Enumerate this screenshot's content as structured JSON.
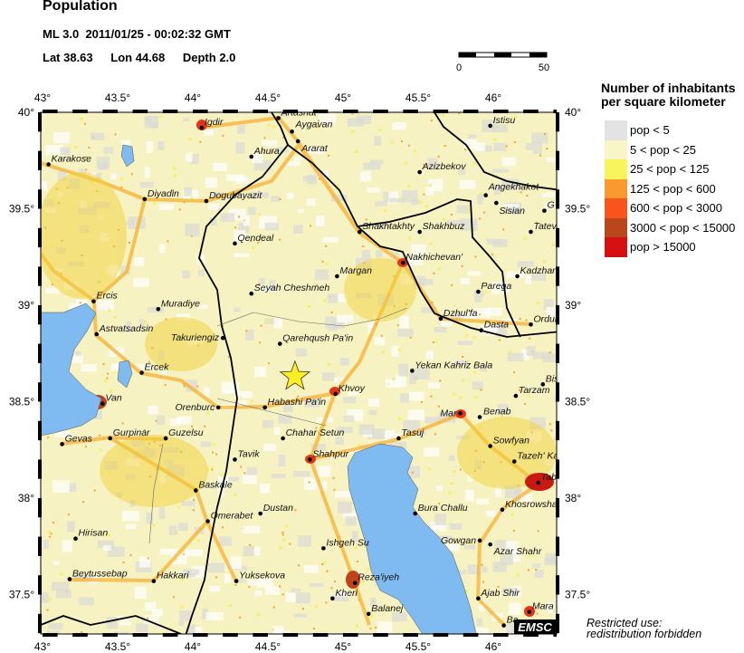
{
  "header": {
    "title": "Population",
    "magnitude": "ML 3.0",
    "datetime": "2011/01/25 - 00:02:32 GMT",
    "lat": "Lat 38.63",
    "lon": "Lon 44.68",
    "depth": "Depth  2.0"
  },
  "scale_bar": {
    "start_label": "0",
    "end_label": "50"
  },
  "map": {
    "lon_range": [
      43,
      46.42
    ],
    "lat_range": [
      37.3,
      40
    ],
    "lon_ticks": [
      "43°",
      "43.5°",
      "44°",
      "44.5°",
      "45°",
      "45.5°",
      "46°"
    ],
    "lat_ticks": [
      "40°",
      "39.5°",
      "39°",
      "38.5°",
      "38°",
      "37.5°"
    ],
    "lon_tick_values": [
      43,
      43.5,
      44,
      44.5,
      45,
      45.5,
      46
    ],
    "lat_tick_values": [
      40,
      39.5,
      39,
      38.5,
      38,
      37.5
    ],
    "epicenter": {
      "lat": 38.63,
      "lon": 44.68,
      "color": "#ffee22"
    },
    "water_color": "#7fbaf0",
    "cities": [
      {
        "name": "Artashat",
        "lat": 39.97,
        "lon": 44.57
      },
      {
        "name": "Aygavan",
        "lat": 39.9,
        "lon": 44.66
      },
      {
        "name": "Ararat",
        "lat": 39.85,
        "lon": 44.7
      },
      {
        "name": "Igdir",
        "lat": 39.92,
        "lon": 44.06
      },
      {
        "name": "Ahura",
        "lat": 39.77,
        "lon": 44.39
      },
      {
        "name": "Karakose",
        "lat": 39.73,
        "lon": 43.04
      },
      {
        "name": "Diyadin",
        "lat": 39.55,
        "lon": 43.68
      },
      {
        "name": "Dogubayazit",
        "lat": 39.54,
        "lon": 44.09
      },
      {
        "name": "Azizbekov",
        "lat": 39.69,
        "lon": 45.51
      },
      {
        "name": "Istisu",
        "lat": 39.93,
        "lon": 45.98
      },
      {
        "name": "Angekhakot",
        "lat": 39.57,
        "lon": 45.95
      },
      {
        "name": "Sisian",
        "lat": 39.53,
        "lon": 46.02
      },
      {
        "name": "G",
        "lat": 39.49,
        "lon": 46.34
      },
      {
        "name": "Tatev",
        "lat": 39.38,
        "lon": 46.25
      },
      {
        "name": "Shakhtakhty",
        "lat": 39.38,
        "lon": 45.11
      },
      {
        "name": "Shakhbuz",
        "lat": 39.38,
        "lon": 45.51
      },
      {
        "name": "Qendeal",
        "lat": 39.32,
        "lon": 44.28
      },
      {
        "name": "Nakhichevan'",
        "lat": 39.22,
        "lon": 45.4
      },
      {
        "name": "Kadzhar",
        "lat": 39.15,
        "lon": 46.16
      },
      {
        "name": "Margan",
        "lat": 39.15,
        "lon": 44.96
      },
      {
        "name": "Parega",
        "lat": 39.07,
        "lon": 45.9
      },
      {
        "name": "Seyah Cheshmeh",
        "lat": 39.06,
        "lon": 44.39
      },
      {
        "name": "Ercis",
        "lat": 39.02,
        "lon": 43.34
      },
      {
        "name": "Muradiye",
        "lat": 38.98,
        "lon": 43.77
      },
      {
        "name": "Dzhul'fa",
        "lat": 38.93,
        "lon": 45.65
      },
      {
        "name": "Dasta",
        "lat": 38.87,
        "lon": 45.92
      },
      {
        "name": "OrdubcMegr",
        "lat": 38.9,
        "lon": 46.25
      },
      {
        "name": "Astvatsadsin",
        "lat": 38.85,
        "lon": 43.36
      },
      {
        "name": "Takuriengiz",
        "lat": 38.83,
        "lon": 44.2
      },
      {
        "name": "Qarehqush Pa'in",
        "lat": 38.8,
        "lon": 44.58
      },
      {
        "name": "Ercek",
        "lat": 38.65,
        "lon": 43.66
      },
      {
        "name": "Yekan Kahriz Bala",
        "lat": 38.66,
        "lon": 45.46
      },
      {
        "name": "Bis",
        "lat": 38.59,
        "lon": 46.33
      },
      {
        "name": "Tarzam",
        "lat": 38.53,
        "lon": 46.15
      },
      {
        "name": "Khvoy",
        "lat": 38.54,
        "lon": 44.95
      },
      {
        "name": "Van",
        "lat": 38.49,
        "lon": 43.4
      },
      {
        "name": "Orenburc",
        "lat": 38.47,
        "lon": 44.17
      },
      {
        "name": "Habashi Pa'in",
        "lat": 38.47,
        "lon": 44.48
      },
      {
        "name": "Mar",
        "lat": 38.44,
        "lon": 45.78
      },
      {
        "name": "Benab",
        "lat": 38.42,
        "lon": 45.91
      },
      {
        "name": "Gevas",
        "lat": 38.28,
        "lon": 43.13
      },
      {
        "name": "Gurpinar",
        "lat": 38.31,
        "lon": 43.45
      },
      {
        "name": "Guzelsu",
        "lat": 38.31,
        "lon": 43.82
      },
      {
        "name": "Chahar Setun",
        "lat": 38.31,
        "lon": 44.6
      },
      {
        "name": "Tasuj",
        "lat": 38.31,
        "lon": 45.37
      },
      {
        "name": "Sowfyan",
        "lat": 38.27,
        "lon": 45.98
      },
      {
        "name": "Tazeh' Ka",
        "lat": 38.19,
        "lon": 46.14
      },
      {
        "name": "Tavik",
        "lat": 38.2,
        "lon": 44.28
      },
      {
        "name": "Shahpur",
        "lat": 38.2,
        "lon": 44.78
      },
      {
        "name": "Tab",
        "lat": 38.08,
        "lon": 46.3
      },
      {
        "name": "Baskale",
        "lat": 38.04,
        "lon": 44.02
      },
      {
        "name": "Khosrowsha",
        "lat": 37.94,
        "lon": 46.06
      },
      {
        "name": "Bura Challu",
        "lat": 37.92,
        "lon": 45.48
      },
      {
        "name": "Dustan",
        "lat": 37.92,
        "lon": 44.45
      },
      {
        "name": "Omerabet",
        "lat": 37.88,
        "lon": 44.1
      },
      {
        "name": "Hirisan",
        "lat": 37.79,
        "lon": 43.22
      },
      {
        "name": "Gowgan",
        "lat": 37.78,
        "lon": 45.91
      },
      {
        "name": "Azar Shahr",
        "lat": 37.76,
        "lon": 45.98
      },
      {
        "name": "Ishgeh Su",
        "lat": 37.74,
        "lon": 44.87
      },
      {
        "name": "Beytussebap",
        "lat": 37.58,
        "lon": 43.18
      },
      {
        "name": "Hakkari",
        "lat": 37.57,
        "lon": 43.74
      },
      {
        "name": "Yuksekova",
        "lat": 37.57,
        "lon": 44.29
      },
      {
        "name": "Reza'iyeh",
        "lat": 37.56,
        "lon": 45.08
      },
      {
        "name": "Kheri",
        "lat": 37.48,
        "lon": 44.93
      },
      {
        "name": "Ajab Shir",
        "lat": 37.48,
        "lon": 45.9
      },
      {
        "name": "Balanej",
        "lat": 37.4,
        "lon": 45.17
      },
      {
        "name": "Mara",
        "lat": 37.41,
        "lon": 46.24
      },
      {
        "name": "Ba",
        "lat": 37.34,
        "lon": 46.07
      }
    ]
  },
  "legend": {
    "title_line1": "Number of inhabitants",
    "title_line2": "per square kilometer",
    "items": [
      {
        "label": "pop < 5",
        "color": "#e3e3e3"
      },
      {
        "label": "5 < pop < 25",
        "color": "#f8f6c8"
      },
      {
        "label": "25 < pop < 125",
        "color": "#f8f55c"
      },
      {
        "label": "125 < pop < 600",
        "color": "#f9992f"
      },
      {
        "label": "600 < pop < 3000",
        "color": "#f9541b"
      },
      {
        "label": "3000 < pop < 15000",
        "color": "#b8471c"
      },
      {
        "label": "pop > 15000",
        "color": "#d61010"
      }
    ]
  },
  "logo": "EMSC",
  "footer": {
    "line1": "Restricted use:",
    "line2": "redistribution forbidden"
  }
}
